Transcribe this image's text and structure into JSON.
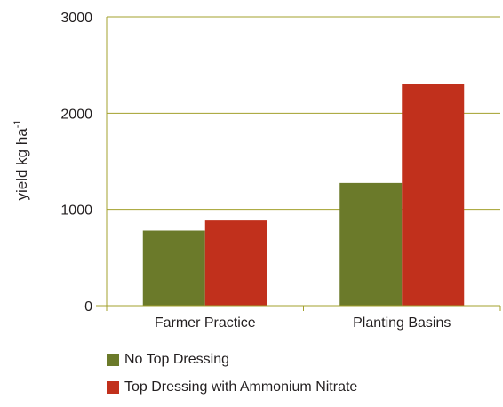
{
  "chart_data": {
    "type": "bar",
    "categories": [
      "Farmer Practice",
      "Planting Basins"
    ],
    "series": [
      {
        "name": "No Top Dressing",
        "values": [
          780,
          1275
        ],
        "color": "#6b7a2a"
      },
      {
        "name": "Top Dressing with Ammonium Nitrate",
        "values": [
          885,
          2300
        ],
        "color": "#c1301c"
      }
    ],
    "ylabel": "yield kg ha",
    "ylabel_superscript": "-1",
    "xlabel": "",
    "ylim": [
      0,
      3000
    ],
    "yticks": [
      0,
      1000,
      2000,
      3000
    ],
    "grid": true,
    "legend_position": "bottom-left"
  }
}
